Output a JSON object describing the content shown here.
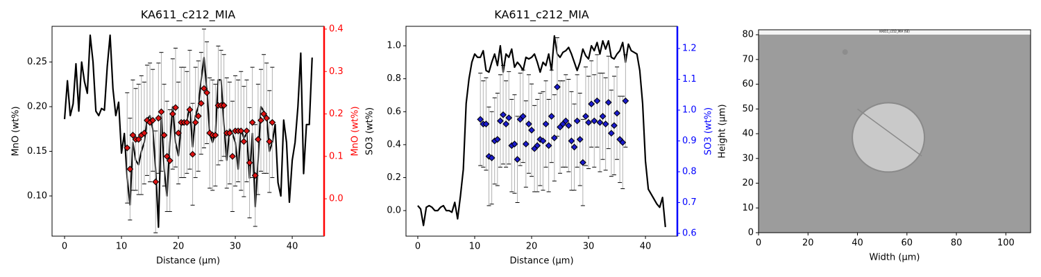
{
  "chart_data": [
    {
      "type": "line",
      "title": "KA611_c212_MIA",
      "xlabel": "Distance (µm)",
      "ylabel": "MnO (wt%)",
      "y2label": "MnO (wt%)",
      "y2color": "#ff0000",
      "xlim": [
        -2.2,
        45.6
      ],
      "ylim": [
        0.055,
        0.29
      ],
      "y2lim": [
        -0.088,
        0.4065
      ],
      "xticks": [
        0,
        10,
        20,
        30,
        40
      ],
      "yticks": [
        {
          "value": 0.1,
          "label": "0.10"
        },
        0.15,
        {
          "value": 0.2,
          "label": "0.20"
        },
        0.25
      ],
      "y2ticks": [
        {
          "value": 0,
          "label": "0.0"
        },
        0.1,
        0.2,
        0.3,
        0.4
      ],
      "series": [
        {
          "type": "line",
          "color": "#000000",
          "x": [
            0,
            0.5,
            1,
            1.5,
            2,
            2.5,
            3,
            3.5,
            4,
            4.5,
            5,
            5.5,
            6,
            6.5,
            7,
            7.5,
            8,
            8.5,
            9,
            9.5,
            10,
            10.5,
            11,
            11.5,
            12,
            12.5,
            13,
            13.5,
            14,
            14.5,
            15,
            15.5,
            16,
            16.5,
            17,
            17.5,
            18,
            18.5,
            19,
            19.5,
            20,
            20.5,
            21,
            21.5,
            22,
            22.5,
            23,
            23.5,
            24,
            24.5,
            25,
            25.5,
            26,
            26.5,
            27,
            27.5,
            28,
            28.5,
            29,
            29.5,
            30,
            30.5,
            31,
            31.5,
            32,
            32.5,
            33,
            33.5,
            34,
            34.5,
            35,
            35.5,
            36,
            36.5,
            37,
            37.5,
            38,
            38.5,
            39,
            39.5,
            40,
            40.5,
            41,
            41.5,
            42,
            42.5,
            43,
            43.5
          ],
          "values": [
            0.186,
            0.229,
            0.19,
            0.203,
            0.248,
            0.195,
            0.25,
            0.228,
            0.215,
            0.28,
            0.25,
            0.195,
            0.19,
            0.198,
            0.196,
            0.245,
            0.28,
            0.22,
            0.19,
            0.205,
            0.148,
            0.17,
            0.12,
            0.09,
            0.16,
            0.14,
            0.135,
            0.15,
            0.16,
            0.185,
            0.19,
            0.175,
            0.13,
            0.065,
            0.19,
            0.13,
            0.1,
            0.16,
            0.2,
            0.16,
            0.145,
            0.18,
            0.18,
            0.185,
            0.2,
            0.155,
            0.19,
            0.2,
            0.23,
            0.255,
            0.22,
            0.17,
            0.16,
            0.17,
            0.23,
            0.23,
            0.18,
            0.14,
            0.175,
            0.17,
            0.16,
            0.13,
            0.175,
            0.165,
            0.17,
            0.12,
            0.17,
            0.088,
            0.14,
            0.2,
            0.195,
            0.19,
            0.15,
            0.16,
            0.18,
            0.115,
            0.1,
            0.185,
            0.16,
            0.093,
            0.14,
            0.16,
            0.2,
            0.26,
            0.125,
            0.18,
            0.18,
            0.255
          ]
        },
        {
          "type": "scatter",
          "axis": "y2",
          "color": "#dd1111",
          "error_color": "#b0b0b0",
          "x": [
            11,
            11.5,
            12,
            12.5,
            13,
            13.5,
            14,
            14.5,
            15,
            15.5,
            16,
            16.5,
            17,
            17.5,
            18,
            18.5,
            19,
            19.5,
            20,
            20.5,
            21,
            21.5,
            22,
            22.5,
            23,
            23.5,
            24,
            24.5,
            25,
            25.5,
            26,
            26.5,
            27,
            27.5,
            28,
            28.5,
            29,
            29.5,
            30,
            30.5,
            31,
            31.5,
            32,
            32.5,
            33,
            33.5,
            34,
            34.5,
            35,
            35.5,
            36,
            36.5
          ],
          "values": [
            0.12,
            0.07,
            0.15,
            0.14,
            0.14,
            0.15,
            0.155,
            0.185,
            0.18,
            0.185,
            0.04,
            0.19,
            0.205,
            0.15,
            0.1,
            0.09,
            0.2,
            0.215,
            0.155,
            0.18,
            0.18,
            0.18,
            0.21,
            0.105,
            0.18,
            0.195,
            0.225,
            0.26,
            0.25,
            0.155,
            0.15,
            0.15,
            0.22,
            0.22,
            0.22,
            0.155,
            0.155,
            0.1,
            0.16,
            0.16,
            0.16,
            0.135,
            0.16,
            0.085,
            0.18,
            0.055,
            0.14,
            0.185,
            0.2,
            0.19,
            0.135,
            0.18
          ],
          "errors": [
            0.13,
            0.12,
            0.13,
            0.12,
            0.13,
            0.14,
            0.12,
            0.13,
            0.14,
            0.12,
            0.12,
            0.13,
            0.14,
            0.12,
            0.13,
            0.12,
            0.13,
            0.14,
            0.12,
            0.13,
            0.13,
            0.12,
            0.14,
            0.12,
            0.13,
            0.13,
            0.12,
            0.14,
            0.12,
            0.13,
            0.13,
            0.12,
            0.14,
            0.13,
            0.12,
            0.13,
            0.12,
            0.13,
            0.13,
            0.12,
            0.14,
            0.13,
            0.12,
            0.13,
            0.13,
            0.12,
            0.13,
            0.12,
            0.14,
            0.13,
            0.12,
            0.13
          ]
        }
      ]
    },
    {
      "type": "line",
      "title": "KA611_c212_MIA",
      "xlabel": "Distance (µm)",
      "ylabel": "SO3 (wt%)",
      "y2label": "SO3 (wt%)",
      "y2color": "#0000ff",
      "xlim": [
        -2.07,
        45.6
      ],
      "ylim": [
        -0.155,
        1.118
      ],
      "y2lim": [
        0.591,
        1.272
      ],
      "xticks": [
        0,
        10,
        20,
        30,
        40
      ],
      "yticks": [
        {
          "value": 0,
          "label": "0.0"
        },
        0.2,
        0.4,
        0.6,
        0.8,
        {
          "value": 1,
          "label": "1.0"
        }
      ],
      "y2ticks": [
        0.6,
        0.7,
        0.8,
        0.9,
        {
          "value": 1,
          "label": "1.0"
        },
        1.1,
        1.2
      ],
      "series": [
        {
          "type": "line",
          "color": "#000000",
          "x": [
            0,
            0.5,
            1,
            1.5,
            2,
            2.5,
            3,
            3.5,
            4,
            4.5,
            5,
            5.5,
            6,
            6.5,
            7,
            7.5,
            8,
            8.5,
            9,
            9.5,
            10,
            10.5,
            11,
            11.5,
            12,
            12.5,
            13,
            13.5,
            14,
            14.5,
            15,
            15.5,
            16,
            16.5,
            17,
            17.5,
            18,
            18.5,
            19,
            19.5,
            20,
            20.5,
            21,
            21.5,
            22,
            22.5,
            23,
            23.5,
            24,
            24.5,
            25,
            25.5,
            26,
            26.5,
            27,
            27.5,
            28,
            28.5,
            29,
            29.5,
            30,
            30.5,
            31,
            31.5,
            32,
            32.5,
            33,
            33.5,
            34,
            34.5,
            35,
            35.5,
            36,
            36.5,
            37,
            37.5,
            38,
            38.5,
            39,
            39.5,
            40,
            40.5,
            41,
            41.5,
            42,
            42.5,
            43,
            43.5
          ],
          "values": [
            0.03,
            0.01,
            -0.09,
            0.02,
            0.03,
            0.02,
            0,
            0,
            0.02,
            0.03,
            0,
            0,
            -0.01,
            0.05,
            -0.05,
            0.09,
            0.25,
            0.65,
            0.8,
            0.9,
            0.95,
            0.93,
            0.93,
            0.97,
            0.85,
            0.84,
            0.9,
            0.95,
            0.88,
            1,
            0.84,
            0.95,
            0.93,
            0.98,
            0.87,
            0.9,
            0.88,
            0.85,
            0.93,
            0.92,
            0.93,
            0.95,
            0.9,
            0.84,
            0.9,
            0.88,
            0.95,
            0.85,
            1.06,
            0.95,
            0.93,
            0.96,
            0.97,
            0.99,
            0.95,
            0.9,
            0.85,
            0.9,
            0.98,
            0.94,
            0.92,
            1,
            0.97,
            1.02,
            0.95,
            1.03,
            0.98,
            1.03,
            0.93,
            0.92,
            0.95,
            0.97,
            1.02,
            0.9,
            1.01,
            0.97,
            0.96,
            0.95,
            0.85,
            0.65,
            0.3,
            0.13,
            0.1,
            0.07,
            0.04,
            0.02,
            0.08,
            -0.1
          ]
        },
        {
          "type": "scatter",
          "axis": "y2",
          "color": "#1a1acc",
          "error_color": "#b0b0b0",
          "x": [
            11,
            11.5,
            12,
            12.5,
            13,
            13.5,
            14,
            14.5,
            15,
            15.5,
            16,
            16.5,
            17,
            17.5,
            18,
            18.5,
            19,
            19.5,
            20,
            20.5,
            21,
            21.5,
            22,
            22.5,
            23,
            23.5,
            24,
            24.5,
            25,
            25.5,
            26,
            26.5,
            27,
            27.5,
            28,
            28.5,
            29,
            29.5,
            30,
            30.5,
            31,
            31.5,
            32,
            32.5,
            33,
            33.5,
            34,
            34.5,
            35,
            35.5,
            36,
            36.5
          ],
          "values": [
            0.97,
            0.955,
            0.955,
            0.85,
            0.845,
            0.9,
            0.905,
            0.965,
            0.985,
            0.955,
            0.975,
            0.885,
            0.89,
            0.84,
            0.97,
            0.98,
            0.89,
            0.955,
            0.935,
            0.875,
            0.885,
            0.905,
            0.9,
            0.955,
            0.885,
            0.98,
            0.91,
            1.075,
            0.945,
            0.955,
            0.965,
            0.95,
            0.9,
            0.88,
            0.965,
            0.905,
            0.83,
            0.98,
            0.96,
            1.02,
            0.965,
            1.03,
            0.96,
            0.98,
            0.955,
            1.025,
            0.925,
            0.95,
            0.99,
            0.905,
            0.895,
            1.03
          ],
          "errors": [
            0.15,
            0.14,
            0.15,
            0.16,
            0.15,
            0.14,
            0.15,
            0.15,
            0.16,
            0.14,
            0.15,
            0.15,
            0.16,
            0.14,
            0.15,
            0.15,
            0.14,
            0.16,
            0.15,
            0.14,
            0.15,
            0.15,
            0.16,
            0.14,
            0.15,
            0.15,
            0.14,
            0.16,
            0.15,
            0.14,
            0.15,
            0.15,
            0.16,
            0.14,
            0.15,
            0.15,
            0.14,
            0.16,
            0.15,
            0.14,
            0.15,
            0.15,
            0.16,
            0.14,
            0.15,
            0.15,
            0.14,
            0.16,
            0.15,
            0.14,
            0.15,
            0.15
          ]
        }
      ]
    },
    {
      "type": "image",
      "xlabel": "Width (µm)",
      "ylabel": "Height (µm)",
      "image_title": "KA611_c212_MIA (SE)",
      "xlim": [
        0,
        110
      ],
      "ylim": [
        0,
        82
      ],
      "xticks": [
        0,
        20,
        40,
        60,
        80,
        100
      ],
      "yticks": [
        0,
        10,
        20,
        30,
        40,
        50,
        60,
        70,
        80
      ]
    }
  ]
}
